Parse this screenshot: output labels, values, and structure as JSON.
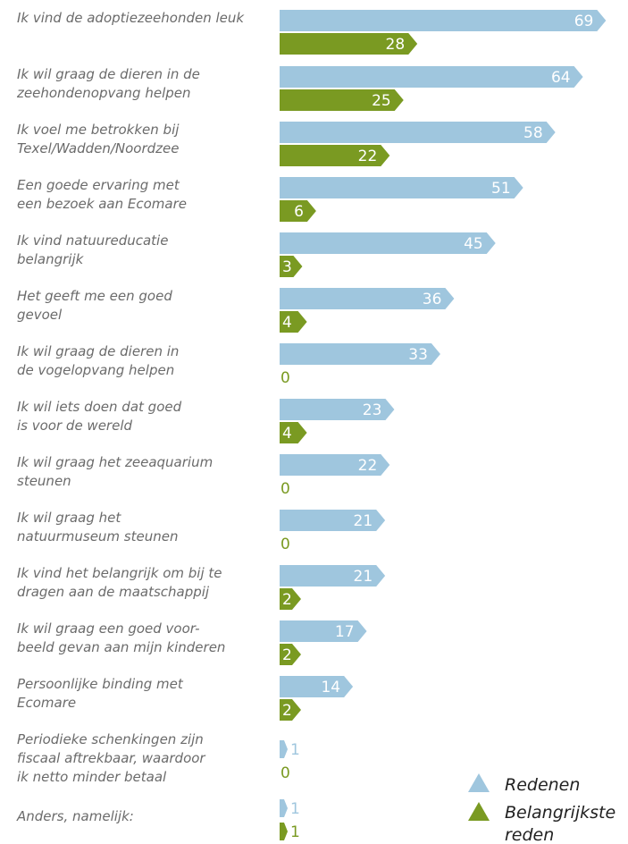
{
  "colors": {
    "redenen": "#9fc6de",
    "belangrijkste": "#7a9a22",
    "label": "#6b6b6b"
  },
  "chart_data": {
    "type": "bar",
    "orientation": "horizontal",
    "categories": [
      [
        "Ik vind de adoptiezeehonden leuk"
      ],
      [
        "Ik wil graag de dieren in de",
        "zeehondenopvang helpen"
      ],
      [
        "Ik voel me betrokken bij",
        "Texel/Wadden/Noordzee"
      ],
      [
        "Een goede ervaring met",
        "een bezoek aan Ecomare"
      ],
      [
        "Ik vind natuureducatie",
        "belangrijk"
      ],
      [
        "Het geeft me een goed",
        "gevoel"
      ],
      [
        "Ik wil graag de dieren in",
        "de vogelopvang helpen"
      ],
      [
        "Ik wil iets doen dat goed",
        "is voor de wereld"
      ],
      [
        "Ik wil graag het zeeaquarium",
        "steunen"
      ],
      [
        "Ik wil graag het",
        "natuurmuseum steunen"
      ],
      [
        "Ik vind het belangrijk om bij te",
        "dragen aan de maatschappij"
      ],
      [
        "Ik wil graag een goed voor-",
        "beeld gevan aan mijn kinderen"
      ],
      [
        "Persoonlijke binding met",
        "Ecomare"
      ],
      [
        "Periodieke schenkingen zijn",
        "fiscaal aftrekbaar, waardoor",
        "ik netto minder betaal"
      ],
      [
        "Anders, namelijk:"
      ]
    ],
    "series": [
      {
        "name": "Redenen",
        "values": [
          69,
          64,
          58,
          51,
          45,
          36,
          33,
          23,
          22,
          21,
          21,
          17,
          14,
          1,
          1
        ]
      },
      {
        "name": "Belangrijkste reden",
        "values": [
          28,
          25,
          22,
          6,
          3,
          4,
          0,
          4,
          0,
          0,
          2,
          2,
          2,
          0,
          1
        ]
      }
    ],
    "legend": {
      "position": "bottom-right",
      "entries": [
        "Redenen",
        [
          "Belangrijkste",
          "reden"
        ]
      ]
    },
    "grid": false
  }
}
